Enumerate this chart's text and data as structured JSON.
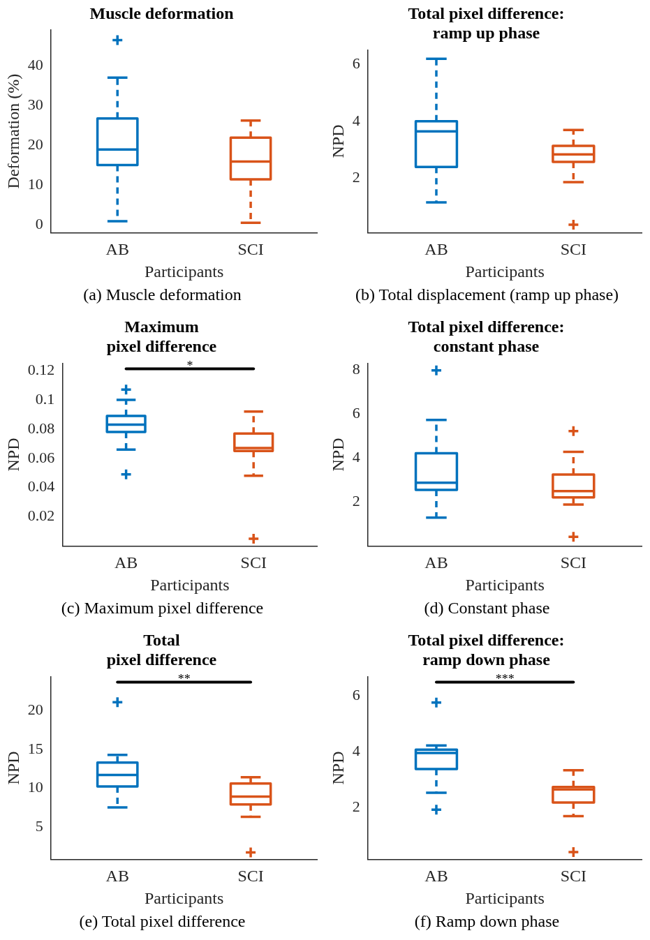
{
  "chart_data": [
    {
      "type": "box",
      "title": "Muscle deformation",
      "xlabel": "Participants",
      "ylabel": "Deformation (%)",
      "categories": [
        "AB",
        "SCI"
      ],
      "colors": [
        "#0072bd",
        "#d95319"
      ],
      "marker": "cross",
      "line_style": "dashed",
      "ylim": [
        -2,
        49
      ],
      "yticks": [
        0,
        10,
        20,
        30,
        40
      ],
      "boxes": [
        {
          "low": 0.9,
          "q1": 15.0,
          "median": 18.9,
          "q3": 26.7,
          "high": 37.0,
          "outliers": [
            46.4
          ]
        },
        {
          "low": 0.5,
          "q1": 11.4,
          "median": 15.9,
          "q3": 21.9,
          "high": 26.2
        }
      ],
      "annotations": [
        "(a) Muscle deformation"
      ]
    },
    {
      "type": "box",
      "title": "Total pixel difference:\nramp up phase",
      "xlabel": "Participants",
      "ylabel": "NPD",
      "categories": [
        "AB",
        "SCI"
      ],
      "colors": [
        "#0072bd",
        "#d95319"
      ],
      "marker": "cross",
      "line_style": "dashed",
      "ylim": [
        0.1,
        6.5
      ],
      "yticks": [
        2,
        4,
        6
      ],
      "boxes": [
        {
          "low": 1.16,
          "q1": 2.4,
          "median": 3.65,
          "q3": 4.0,
          "high": 6.19
        },
        {
          "low": 1.87,
          "q1": 2.58,
          "median": 2.84,
          "q3": 3.14,
          "high": 3.7,
          "outliers": [
            0.38
          ]
        }
      ],
      "annotations": [
        "(b) Total displacement (ramp up phase)"
      ]
    },
    {
      "type": "box",
      "title": "Maximum\npixel difference",
      "xlabel": "Participants",
      "ylabel": "NPD",
      "categories": [
        "AB",
        "SCI"
      ],
      "colors": [
        "#0072bd",
        "#d95319"
      ],
      "marker": "cross",
      "line_style": "dashed",
      "ylim": [
        0,
        0.125
      ],
      "yticks": [
        0.02,
        0.04,
        0.06,
        0.08,
        0.1,
        0.12
      ],
      "boxes": [
        {
          "low": 0.066,
          "q1": 0.078,
          "median": 0.083,
          "q3": 0.089,
          "high": 0.1,
          "outliers": [
            0.107,
            0.049
          ]
        },
        {
          "low": 0.048,
          "q1": 0.065,
          "median": 0.067,
          "q3": 0.077,
          "high": 0.092,
          "outliers": [
            0.005
          ]
        }
      ],
      "annotations": [
        "*",
        "(c) Maximum pixel difference"
      ]
    },
    {
      "type": "box",
      "title": "Total pixel difference:\nconstant phase",
      "xlabel": "Participants",
      "ylabel": "NPD",
      "categories": [
        "AB",
        "SCI"
      ],
      "colors": [
        "#0072bd",
        "#d95319"
      ],
      "marker": "cross",
      "line_style": "dashed",
      "ylim": [
        0,
        8.3
      ],
      "yticks": [
        2,
        4,
        6,
        8
      ],
      "boxes": [
        {
          "low": 1.29,
          "q1": 2.55,
          "median": 2.87,
          "q3": 4.21,
          "high": 5.73,
          "outliers": [
            7.98
          ]
        },
        {
          "low": 1.88,
          "q1": 2.21,
          "median": 2.49,
          "q3": 3.25,
          "high": 4.28,
          "outliers": [
            5.22,
            0.42
          ]
        }
      ],
      "annotations": [
        "(d) Constant phase"
      ]
    },
    {
      "type": "box",
      "title": "Total\npixel difference",
      "xlabel": "Participants",
      "ylabel": "NPD",
      "categories": [
        "AB",
        "SCI"
      ],
      "colors": [
        "#0072bd",
        "#d95319"
      ],
      "marker": "cross",
      "line_style": "dashed",
      "ylim": [
        0.8,
        24.4
      ],
      "yticks": [
        5,
        10,
        15,
        20
      ],
      "boxes": [
        {
          "low": 7.5,
          "q1": 10.2,
          "median": 11.7,
          "q3": 13.3,
          "high": 14.3,
          "outliers": [
            21.1
          ]
        },
        {
          "low": 6.3,
          "q1": 7.9,
          "median": 8.9,
          "q3": 10.6,
          "high": 11.4,
          "outliers": [
            1.7
          ]
        }
      ],
      "annotations": [
        "**",
        "(e) Total pixel difference"
      ]
    },
    {
      "type": "box",
      "title": "Total pixel difference:\nramp down phase",
      "xlabel": "Participants",
      "ylabel": "NPD",
      "categories": [
        "AB",
        "SCI"
      ],
      "colors": [
        "#0072bd",
        "#d95319"
      ],
      "marker": "cross",
      "line_style": "dashed",
      "ylim": [
        0.14,
        6.7
      ],
      "yticks": [
        2,
        4,
        6
      ],
      "boxes": [
        {
          "low": 2.53,
          "q1": 3.38,
          "median": 3.96,
          "q3": 4.08,
          "high": 4.23,
          "outliers": [
            5.77,
            1.92
          ]
        },
        {
          "low": 1.69,
          "q1": 2.18,
          "median": 2.65,
          "q3": 2.74,
          "high": 3.34,
          "outliers": [
            0.4
          ]
        }
      ],
      "annotations": [
        "***",
        "(f) Ramp down phase"
      ]
    }
  ]
}
